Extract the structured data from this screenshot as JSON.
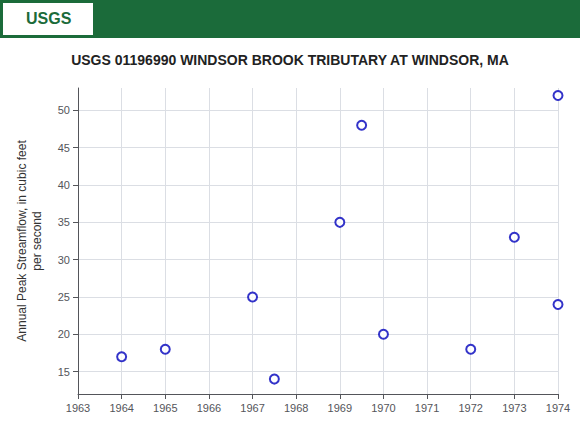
{
  "chart_data": {
    "type": "scatter",
    "title": "USGS 01196990 WINDSOR BROOK TRIBUTARY AT WINDSOR, MA",
    "annotations": [
      "USGS"
    ],
    "ylabel": "Annual Peak Streamflow, in cubic feet\nper second",
    "x": [
      1964,
      1965,
      1967,
      1967.5,
      1969,
      1969.5,
      1970,
      1972,
      1973,
      1974,
      1974
    ],
    "values": [
      17,
      18,
      25,
      14,
      35,
      48,
      20,
      18,
      33,
      24,
      52
    ],
    "xlim": [
      1963,
      1974
    ],
    "ylim": [
      12,
      53
    ],
    "xticks": [
      1963,
      1964,
      1965,
      1966,
      1967,
      1968,
      1969,
      1970,
      1971,
      1972,
      1973,
      1974
    ],
    "yticks": [
      15,
      20,
      25,
      30,
      35,
      40,
      45,
      50
    ],
    "color": "#0000bb",
    "marker": "emptyCircle",
    "grid": true
  }
}
